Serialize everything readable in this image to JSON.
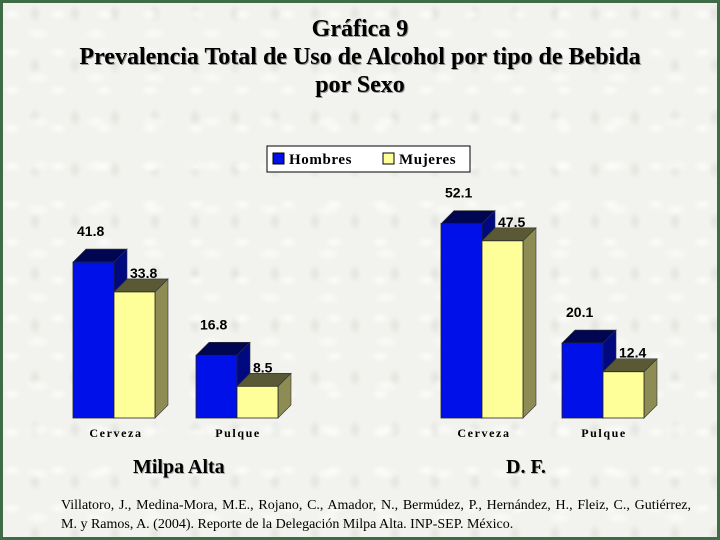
{
  "title": {
    "line1": "Gráfica 9",
    "line2": "Prevalencia Total de Uso de Alcohol por tipo de Bebida",
    "line3": "por Sexo"
  },
  "legend": [
    {
      "name": "Hombres",
      "color": "#0010e8"
    },
    {
      "name": "Mujeres",
      "color": "#ffff99"
    }
  ],
  "chart_data": [
    {
      "type": "bar",
      "panel_label": "Milpa Alta",
      "categories": [
        "Cerveza",
        "Pulque"
      ],
      "series": [
        {
          "name": "Hombres",
          "values": [
            41.8,
            16.8
          ]
        },
        {
          "name": "Mujeres",
          "values": [
            33.8,
            8.5
          ]
        }
      ],
      "ylim": [
        0,
        60
      ],
      "grid": false,
      "legend_position": "top-center"
    },
    {
      "type": "bar",
      "panel_label": "D. F.",
      "categories": [
        "Cerveza",
        "Pulque"
      ],
      "series": [
        {
          "name": "Hombres",
          "values": [
            52.1,
            20.1
          ]
        },
        {
          "name": "Mujeres",
          "values": [
            47.5,
            12.4
          ]
        }
      ],
      "ylim": [
        0,
        60
      ],
      "grid": false,
      "legend_position": "top-center"
    }
  ],
  "source": "Villatoro, J., Medina-Mora, M.E., Rojano, C., Amador, N., Bermúdez, P., Hernández, H., Fleiz, C., Gutiérrez, M. y Ramos, A. (2004). Reporte de la Delegación Milpa Alta. INP-SEP. México."
}
